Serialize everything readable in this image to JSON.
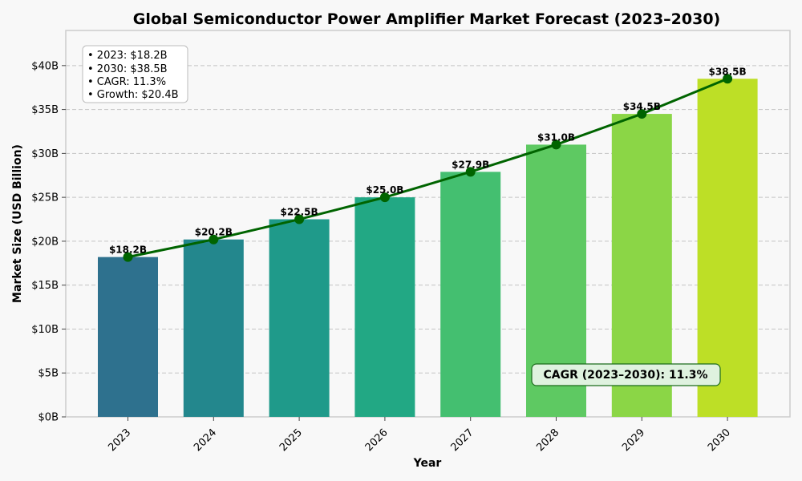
{
  "chart_data": {
    "type": "bar",
    "title": "Global Semiconductor Power Amplifier Market Forecast (2023–2030)",
    "xlabel": "Year",
    "ylabel": "Market Size (USD Billion)",
    "categories": [
      "2023",
      "2024",
      "2025",
      "2026",
      "2027",
      "2028",
      "2029",
      "2030"
    ],
    "values": [
      18.2,
      20.2,
      22.5,
      25.0,
      27.9,
      31.0,
      34.5,
      38.5
    ],
    "data_labels": [
      "$18.2B",
      "$20.2B",
      "$22.5B",
      "$25.0B",
      "$27.9B",
      "$31.0B",
      "$34.5B",
      "$38.5B"
    ],
    "bar_colors": [
      "#2e718e",
      "#23878d",
      "#1f9a8a",
      "#22a884",
      "#44bf70",
      "#5ec962",
      "#8bd646",
      "#bddf26"
    ],
    "line_series": {
      "values": [
        18.2,
        20.2,
        22.5,
        25.0,
        27.9,
        31.0,
        34.5,
        38.5
      ],
      "color": "#006400"
    },
    "ylim": [
      0,
      44
    ],
    "yticks": [
      0,
      5,
      10,
      15,
      20,
      25,
      30,
      35,
      40
    ],
    "ytick_labels": [
      "$0B",
      "$5B",
      "$10B",
      "$15B",
      "$20B",
      "$25B",
      "$30B",
      "$35B",
      "$40B"
    ],
    "grid": true,
    "info_box": {
      "position": "top-left",
      "lines": [
        "• 2023: $18.2B",
        "• 2030: $38.5B",
        "• CAGR: 11.3%",
        "• Growth: $20.4B"
      ]
    },
    "cagr_annotation": {
      "text": "CAGR (2023–2030): 11.3%",
      "position": "bottom-right",
      "color": "#dff2df"
    }
  }
}
